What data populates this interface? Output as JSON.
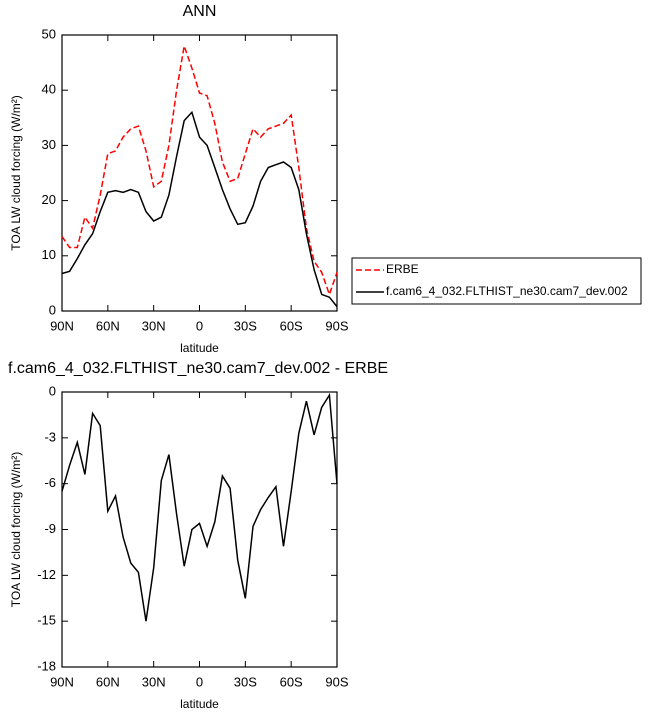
{
  "chart_data": [
    {
      "type": "line",
      "title": "ANN",
      "xlabel": "latitude",
      "ylabel": "TOA LW cloud forcing (W/m²)",
      "x": [
        90,
        85,
        80,
        75,
        70,
        65,
        60,
        55,
        50,
        45,
        40,
        35,
        30,
        25,
        20,
        15,
        10,
        5,
        0,
        -5,
        -10,
        -15,
        -20,
        -25,
        -30,
        -35,
        -40,
        -45,
        -50,
        -55,
        -60,
        -65,
        -70,
        -75,
        -80,
        -85,
        -90
      ],
      "series": [
        {
          "name": "ERBE",
          "color": "#ff0000",
          "line_style": "dashed",
          "values": [
            13.5,
            11.5,
            11.5,
            17,
            15,
            21,
            28.5,
            29,
            31.5,
            33,
            33.5,
            29,
            22.5,
            23.5,
            30,
            40,
            48,
            44,
            39.5,
            39,
            34,
            27,
            23.5,
            24,
            28.5,
            33,
            31.5,
            33,
            33.5,
            34,
            35.5,
            26,
            15,
            9,
            7,
            3,
            7
          ]
        },
        {
          "name": "f.cam6_4_032.FLTHIST_ne30.cam7_dev.002",
          "color": "#000000",
          "line_style": "solid",
          "values": [
            6.8,
            7.2,
            9.5,
            12,
            14,
            18,
            21.5,
            21.8,
            21.5,
            22,
            21.5,
            18,
            16.3,
            17,
            21,
            28,
            34.5,
            36,
            31.5,
            30,
            26,
            22,
            18.5,
            15.7,
            16,
            19,
            23.5,
            26,
            26.5,
            27,
            26,
            22,
            14,
            7.5,
            3,
            2.5,
            0.8
          ]
        }
      ],
      "xlim": [
        90,
        -90
      ],
      "xticks": [
        {
          "value": 90,
          "label": "90N"
        },
        {
          "value": 60,
          "label": "60N"
        },
        {
          "value": 30,
          "label": "30N"
        },
        0,
        {
          "value": -30,
          "label": "30S"
        },
        {
          "value": -60,
          "label": "60S"
        },
        {
          "value": -90,
          "label": "90S"
        }
      ],
      "ylim": [
        0,
        50
      ],
      "yticks": [
        0,
        10,
        20,
        30,
        40,
        50
      ],
      "legend": "right"
    },
    {
      "type": "line",
      "title": "f.cam6_4_032.FLTHIST_ne30.cam7_dev.002 - ERBE",
      "xlabel": "latitude",
      "ylabel": "TOA LW cloud forcing (W/m²)",
      "x": [
        90,
        85,
        80,
        75,
        70,
        65,
        60,
        55,
        50,
        45,
        40,
        35,
        30,
        25,
        20,
        15,
        10,
        5,
        0,
        -5,
        -10,
        -15,
        -20,
        -25,
        -30,
        -35,
        -40,
        -45,
        -50,
        -55,
        -60,
        -65,
        -70,
        -75,
        -80,
        -85,
        -90
      ],
      "values": [
        -6.5,
        -4.8,
        -3.3,
        -5.4,
        -1.4,
        -2.2,
        -7.8,
        -6.8,
        -9.5,
        -11.2,
        -11.8,
        -15,
        -11.5,
        -5.8,
        -4.1,
        -8,
        -11.4,
        -9,
        -8.6,
        -10.1,
        -8.5,
        -5.5,
        -6.3,
        -11,
        -13.5,
        -8.8,
        -7.7,
        -6.9,
        -6.2,
        -10.1,
        -6.5,
        -2.7,
        -0.6,
        -2.8,
        -1,
        -0.2,
        -6
      ],
      "color": "#000000",
      "xlim": [
        90,
        -90
      ],
      "xticks": [
        {
          "value": 90,
          "label": "90N"
        },
        {
          "value": 60,
          "label": "60N"
        },
        {
          "value": 30,
          "label": "30N"
        },
        0,
        {
          "value": -30,
          "label": "30S"
        },
        {
          "value": -60,
          "label": "60S"
        },
        {
          "value": -90,
          "label": "90S"
        }
      ],
      "ylim": [
        -18,
        0
      ],
      "yticks": [
        -18,
        -15,
        -12,
        -9,
        -6,
        -3,
        0
      ]
    }
  ]
}
